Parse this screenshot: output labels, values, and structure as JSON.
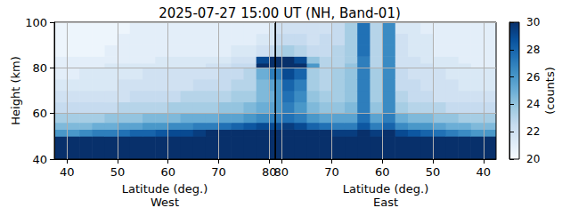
{
  "chart_data": {
    "type": "heatmap",
    "title": "2025-07-27 15:00 UT (NH, Band-01)",
    "ylabel": "Height (km)",
    "ylim": [
      40,
      100
    ],
    "yticks": [
      40,
      60,
      80,
      100
    ],
    "grid": true,
    "y_edges": [
      40,
      50,
      53,
      56,
      60,
      65,
      70,
      75,
      80,
      82,
      85,
      90,
      95,
      100
    ],
    "panels": [
      {
        "xlabel": "Latitude (deg.)\nWest",
        "xlim": [
          37.5,
          81.2
        ],
        "xticks": [
          40,
          50,
          60,
          70,
          80
        ],
        "x_edges": [
          37.5,
          40,
          42.5,
          45,
          47.5,
          50,
          52.5,
          55,
          57.5,
          60,
          62.5,
          65,
          67.5,
          70,
          72.5,
          75,
          77.5,
          80,
          81.2
        ],
        "z": [
          [
            32,
            32,
            32,
            32,
            32,
            32,
            32,
            32,
            32,
            32,
            32,
            32,
            32,
            32,
            32,
            32,
            32,
            32
          ],
          [
            26,
            26,
            26.5,
            27,
            27,
            27.5,
            28,
            28,
            28.5,
            29,
            29,
            29.5,
            30,
            30,
            30.5,
            31,
            31,
            31
          ],
          [
            24.5,
            24.5,
            24.5,
            25,
            25,
            25.5,
            25.5,
            26,
            26,
            26.5,
            26.5,
            27,
            27,
            27.5,
            28,
            28.5,
            29,
            29
          ],
          [
            23.5,
            23.5,
            23.5,
            23.5,
            24,
            24,
            24,
            24.5,
            24.5,
            24.5,
            25,
            25,
            25,
            25.5,
            25.5,
            26,
            26.5,
            27
          ],
          [
            22.5,
            22.5,
            22.5,
            22.5,
            22.5,
            23,
            23,
            23,
            23,
            23.5,
            23.5,
            23.5,
            23.5,
            24,
            24,
            24.5,
            25,
            25.5
          ],
          [
            22,
            22,
            22,
            22,
            22,
            22,
            22.5,
            22.5,
            22.5,
            22.5,
            23,
            23,
            23,
            23,
            23.5,
            23.5,
            24.5,
            25
          ],
          [
            21.5,
            21.5,
            21.5,
            21.5,
            21.5,
            22,
            22,
            22,
            22,
            22,
            22,
            22.5,
            22.5,
            22.5,
            23,
            23,
            24.5,
            25.5
          ],
          [
            21,
            21,
            21.5,
            21.5,
            21.5,
            21.5,
            21.5,
            22,
            22,
            22,
            22,
            22,
            22,
            22.5,
            22.5,
            23,
            25,
            27
          ],
          [
            21,
            21,
            21,
            21,
            21.5,
            21.5,
            21.5,
            21.5,
            21.5,
            21.5,
            21.5,
            21.5,
            22,
            22,
            22.5,
            22.5,
            30,
            31
          ],
          [
            21,
            21,
            21,
            21,
            21,
            21,
            21,
            21,
            21.5,
            21.5,
            21.5,
            21.5,
            21.5,
            21.5,
            22,
            22,
            29,
            31
          ],
          [
            20.5,
            20.5,
            20.5,
            20.5,
            21,
            21,
            21,
            21,
            21,
            21,
            21,
            21,
            21,
            21,
            21.5,
            21.5,
            22,
            22.5
          ],
          [
            20.5,
            20.5,
            20.5,
            20.5,
            20.5,
            21,
            21,
            21,
            21,
            21,
            21,
            21,
            21,
            21,
            21,
            21,
            21.5,
            21.5
          ],
          [
            20.5,
            20.5,
            20.5,
            20.5,
            20.5,
            20.5,
            21,
            21,
            21,
            21,
            21,
            21,
            21,
            21,
            21,
            21,
            21,
            21.5
          ]
        ]
      },
      {
        "xlabel": "Latitude (deg.)\nEast",
        "xlim": [
          81.2,
          37.5
        ],
        "xticks": [
          80,
          70,
          60,
          50,
          40
        ],
        "x_edges": [
          37.5,
          40,
          42.5,
          45,
          47.5,
          50,
          52.5,
          55,
          57.5,
          60,
          62.5,
          65,
          67.5,
          70,
          72.5,
          75,
          77.5,
          80,
          81.2
        ],
        "z": [
          [
            32,
            32,
            32,
            32,
            32,
            32,
            32,
            32,
            32,
            32,
            32,
            32,
            32,
            32,
            32,
            32,
            32,
            32
          ],
          [
            26,
            26,
            26.5,
            27,
            27.5,
            28,
            28.5,
            29,
            30,
            29.5,
            30,
            29.5,
            29.5,
            30,
            30,
            30.5,
            31,
            31
          ],
          [
            24.5,
            24.5,
            25,
            25,
            25.5,
            26,
            26,
            26.5,
            28,
            27,
            28.5,
            27,
            27,
            27.5,
            28,
            29,
            29.5,
            29
          ],
          [
            23.5,
            23.5,
            23.5,
            24,
            24,
            24.5,
            24.5,
            25,
            27,
            25.5,
            27.5,
            25.5,
            25.5,
            25.5,
            26,
            27,
            27.5,
            27
          ],
          [
            22.5,
            22.5,
            22.5,
            22.5,
            23,
            23,
            23,
            23.5,
            26.5,
            24,
            27,
            24.5,
            24,
            24,
            24.5,
            26,
            27,
            26
          ],
          [
            22,
            22,
            22,
            22,
            22,
            22.5,
            22.5,
            23,
            26.5,
            23.5,
            27,
            24,
            23.5,
            23.5,
            24,
            26.5,
            27.5,
            26
          ],
          [
            21.5,
            21.5,
            21.5,
            22,
            22,
            22,
            22.5,
            22.5,
            26.5,
            23.5,
            27,
            24,
            23.5,
            23,
            23.5,
            27,
            28,
            26
          ],
          [
            21.5,
            21.5,
            21.5,
            21.5,
            22,
            22,
            22,
            22.5,
            26.5,
            23.5,
            27,
            24,
            23.5,
            23,
            23.5,
            28,
            29,
            27
          ],
          [
            21,
            21,
            21.5,
            21.5,
            21.5,
            22,
            22,
            22,
            26.5,
            23,
            27,
            24,
            23,
            23,
            26,
            30,
            30.5,
            30
          ],
          [
            21,
            21,
            21,
            21.5,
            21.5,
            21.5,
            22,
            22,
            26.5,
            23,
            27,
            23.5,
            23,
            23,
            24,
            29,
            31,
            31
          ],
          [
            21,
            21,
            21,
            21,
            21,
            21.5,
            21.5,
            22,
            26.5,
            23,
            27.5,
            23.5,
            23,
            22.5,
            22.5,
            23,
            23.5,
            23
          ],
          [
            21,
            21,
            21,
            21,
            21,
            21.5,
            21.5,
            22,
            26.5,
            23,
            27.5,
            23.5,
            22.5,
            22.5,
            22,
            22.5,
            22.5,
            22.5
          ],
          [
            21,
            21,
            21,
            21,
            21,
            21,
            21.5,
            21.5,
            26.5,
            23,
            27.5,
            23.5,
            22.5,
            22,
            22,
            22,
            22,
            22
          ]
        ]
      }
    ],
    "colorbar": {
      "label": "(counts)",
      "range": [
        20,
        30
      ],
      "ticks": [
        20,
        22,
        24,
        26,
        28,
        30
      ]
    }
  }
}
